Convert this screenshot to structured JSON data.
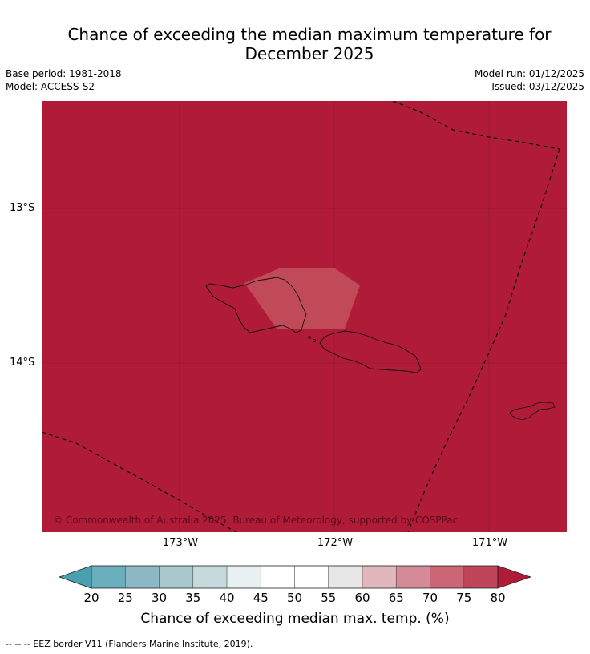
{
  "title_line1": "Chance of exceeding the median maximum temperature for",
  "title_line2": "December 2025",
  "meta": {
    "base_period": "Base period: 1981-2018",
    "model": "Model: ACCESS-S2",
    "model_run": "Model run: 01/12/2025",
    "issued": "Issued: 03/12/2025"
  },
  "map": {
    "latitude_labels": [
      "13°S",
      "14°S"
    ],
    "longitude_labels": [
      "173°W",
      "172°W",
      "171°W"
    ],
    "copyright": "© Commonwealth of Australia 2025, Bureau of Meteorology, supported by COSPPac",
    "background_color": "#b01c38",
    "inner_cell_color": "#c14a59",
    "dominant_category": "80+",
    "inner_cell_category": "75-80"
  },
  "colorbar": {
    "ticks": [
      "20",
      "25",
      "30",
      "35",
      "40",
      "45",
      "50",
      "55",
      "60",
      "65",
      "70",
      "75",
      "80"
    ],
    "colors": [
      "#4aa0b0",
      "#6aafbe",
      "#8bb8c4",
      "#a8c8cd",
      "#c6d9dd",
      "#e8f0f2",
      "#ffffff",
      "#ffffff",
      "#e8e6e7",
      "#e0b7bd",
      "#d58b97",
      "#ca6675",
      "#bf4558",
      "#b01c38"
    ],
    "label": "Chance of exceeding median max. temp. (%)"
  },
  "footnote": "--  --  -- EEZ border V11 (Flanders Marine Institute, 2019)."
}
